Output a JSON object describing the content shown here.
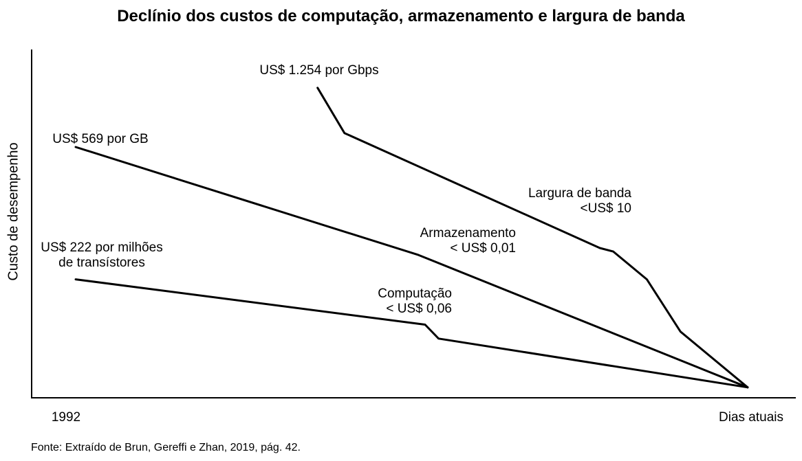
{
  "chart_data": {
    "type": "line",
    "title": "Declínio dos custos de computação, armazenamento e largura de banda",
    "ylabel": "Custo de desempenho",
    "xlabel": "",
    "x_tick_labels": [
      "1992",
      "Dias atuais"
    ],
    "grid": false,
    "legend": "none",
    "series": [
      {
        "name": "Largura de banda",
        "start_label": "US$ 1.254 por Gbps",
        "end_label": [
          "Largura de banda",
          "<US$ 10"
        ],
        "points": [
          [
            0.36,
            0.89
          ],
          [
            0.4,
            0.76
          ],
          [
            0.78,
            0.43
          ],
          [
            0.8,
            0.42
          ],
          [
            0.85,
            0.34
          ],
          [
            0.9,
            0.19
          ],
          [
            1.0,
            0.03
          ]
        ]
      },
      {
        "name": "Armazenamento",
        "start_label": "US$ 569 por GB",
        "end_label": [
          "Armazenamento",
          "< US$ 0,01"
        ],
        "points": [
          [
            0.0,
            0.72
          ],
          [
            0.51,
            0.41
          ],
          [
            1.0,
            0.03
          ]
        ]
      },
      {
        "name": "Computação",
        "start_label": [
          "US$ 222 por milhões",
          "de transístores"
        ],
        "end_label": [
          "Computação",
          "< US$ 0,06"
        ],
        "points": [
          [
            0.0,
            0.34
          ],
          [
            0.52,
            0.21
          ],
          [
            0.54,
            0.17
          ],
          [
            1.0,
            0.03
          ]
        ]
      }
    ],
    "xlim": [
      0,
      1
    ],
    "ylim": [
      0,
      1
    ]
  },
  "source": "Fonte: Extraído de Brun, Gereffi e Zhan, 2019, pág. 42.",
  "style": {
    "line_color": "#000000"
  }
}
